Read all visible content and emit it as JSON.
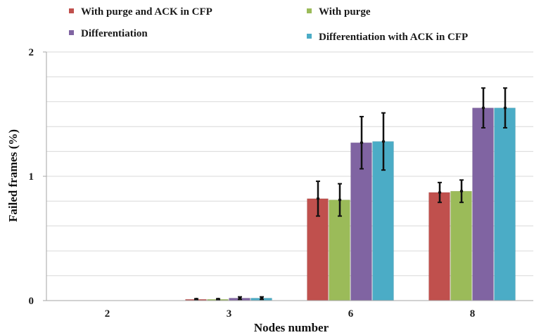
{
  "chart_data": {
    "type": "bar",
    "xlabel": "Nodes number",
    "ylabel": "Failed frames (%)",
    "categories": [
      "2",
      "3",
      "6",
      "8"
    ],
    "ylim": [
      0,
      2
    ],
    "yticks": [
      "0",
      "1",
      "2"
    ],
    "grid": true,
    "legend_position": "top",
    "series": [
      {
        "name": "With purge and ACK in CFP",
        "color": "#c0504d",
        "values": [
          0,
          0.01,
          0.82,
          0.87
        ],
        "errors": [
          0,
          0.005,
          0.14,
          0.08
        ]
      },
      {
        "name": "With purge",
        "color": "#9bbb59",
        "values": [
          0,
          0.01,
          0.81,
          0.88
        ],
        "errors": [
          0,
          0.005,
          0.13,
          0.09
        ]
      },
      {
        "name": "Differentiation",
        "color": "#8064a2",
        "values": [
          0,
          0.02,
          1.27,
          1.55
        ],
        "errors": [
          0,
          0.01,
          0.21,
          0.16
        ]
      },
      {
        "name": "Differentiation with ACK in CFP",
        "color": "#4bacc6",
        "values": [
          0,
          0.02,
          1.28,
          1.55
        ],
        "errors": [
          0,
          0.01,
          0.23,
          0.16
        ]
      }
    ]
  }
}
